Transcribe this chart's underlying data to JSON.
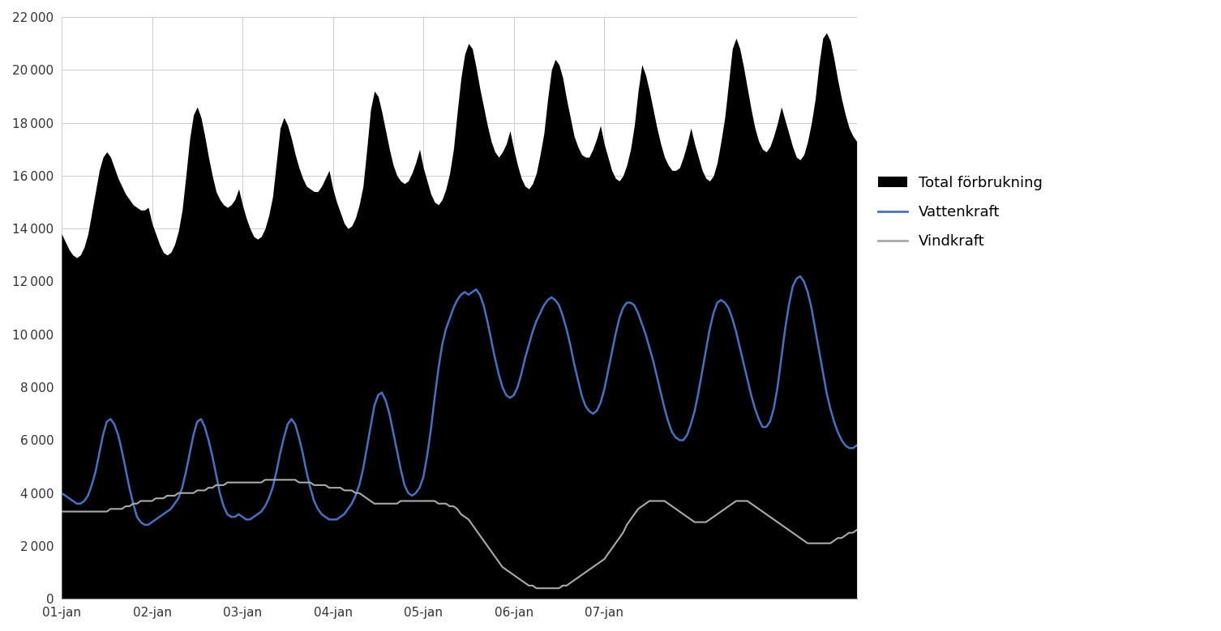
{
  "title": "",
  "background_color": "#ffffff",
  "ylim": [
    0,
    22000
  ],
  "yticks": [
    0,
    2000,
    4000,
    6000,
    8000,
    10000,
    12000,
    14000,
    16000,
    18000,
    20000,
    22000
  ],
  "xtick_labels": [
    "01-jan",
    "02-jan",
    "03-jan",
    "04-jan",
    "05-jan",
    "06-jan",
    "07-jan"
  ],
  "fill_color": "#000000",
  "vattenkraft_color": "#4472c4",
  "vindkraft_color": "#aaaaaa",
  "legend_labels": [
    "Total förbrukning",
    "Vattenkraft",
    "Vindkraft"
  ],
  "total_forbrukning": [
    13800,
    13500,
    13200,
    13000,
    12900,
    13000,
    13300,
    13800,
    14600,
    15400,
    16200,
    16700,
    16900,
    16700,
    16300,
    15900,
    15600,
    15300,
    15100,
    14900,
    14800,
    14700,
    14700,
    14800,
    14200,
    13800,
    13400,
    13100,
    13000,
    13100,
    13400,
    13900,
    14700,
    16000,
    17400,
    18300,
    18600,
    18200,
    17500,
    16700,
    16000,
    15400,
    15100,
    14900,
    14800,
    14900,
    15100,
    15500,
    14900,
    14400,
    14000,
    13700,
    13600,
    13700,
    14000,
    14500,
    15200,
    16500,
    17800,
    18200,
    17900,
    17400,
    16800,
    16300,
    15900,
    15600,
    15500,
    15400,
    15400,
    15600,
    15900,
    16200,
    15500,
    15000,
    14600,
    14200,
    14000,
    14100,
    14400,
    14900,
    15600,
    17000,
    18500,
    19200,
    19000,
    18400,
    17700,
    17000,
    16400,
    16000,
    15800,
    15700,
    15800,
    16100,
    16500,
    17000,
    16300,
    15800,
    15300,
    15000,
    14900,
    15100,
    15500,
    16100,
    17000,
    18400,
    19700,
    20600,
    21000,
    20800,
    20100,
    19300,
    18600,
    17900,
    17300,
    16900,
    16700,
    16900,
    17200,
    17700,
    17000,
    16400,
    15900,
    15600,
    15500,
    15700,
    16100,
    16800,
    17600,
    18900,
    20000,
    20400,
    20200,
    19700,
    18900,
    18200,
    17500,
    17100,
    16800,
    16700,
    16700,
    17000,
    17400,
    17900,
    17200,
    16700,
    16200,
    15900,
    15800,
    16000,
    16400,
    17000,
    17900,
    19200,
    20200,
    19800,
    19200,
    18500,
    17800,
    17200,
    16700,
    16400,
    16200,
    16200,
    16300,
    16700,
    17200,
    17800,
    17200,
    16700,
    16200,
    15900,
    15800,
    16000,
    16500,
    17300,
    18200,
    19500,
    20800,
    21200,
    20800,
    20100,
    19300,
    18500,
    17800,
    17300,
    17000,
    16900,
    17100,
    17500,
    18000,
    18600,
    18100,
    17600,
    17100,
    16700,
    16600,
    16800,
    17300,
    18000,
    18900,
    20200,
    21200,
    21400,
    21100,
    20400,
    19600,
    18900,
    18300,
    17800,
    17500,
    17300
  ],
  "vattenkraft": [
    4000,
    3900,
    3800,
    3700,
    3600,
    3600,
    3700,
    3900,
    4300,
    4800,
    5500,
    6200,
    6700,
    6800,
    6600,
    6200,
    5600,
    4900,
    4200,
    3600,
    3100,
    2900,
    2800,
    2800,
    2900,
    3000,
    3100,
    3200,
    3300,
    3400,
    3600,
    3800,
    4200,
    4800,
    5500,
    6200,
    6700,
    6800,
    6500,
    6000,
    5400,
    4700,
    4000,
    3500,
    3200,
    3100,
    3100,
    3200,
    3100,
    3000,
    3000,
    3100,
    3200,
    3300,
    3500,
    3800,
    4200,
    4800,
    5500,
    6100,
    6600,
    6800,
    6600,
    6100,
    5500,
    4800,
    4200,
    3700,
    3400,
    3200,
    3100,
    3000,
    3000,
    3000,
    3100,
    3200,
    3400,
    3600,
    3900,
    4300,
    4900,
    5700,
    6500,
    7300,
    7700,
    7800,
    7500,
    7000,
    6300,
    5600,
    4900,
    4300,
    4000,
    3900,
    4000,
    4200,
    4600,
    5400,
    6400,
    7600,
    8700,
    9600,
    10200,
    10600,
    11000,
    11300,
    11500,
    11600,
    11500,
    11600,
    11700,
    11500,
    11100,
    10500,
    9800,
    9100,
    8500,
    8000,
    7700,
    7600,
    7700,
    8000,
    8500,
    9100,
    9600,
    10100,
    10500,
    10800,
    11100,
    11300,
    11400,
    11300,
    11100,
    10700,
    10200,
    9600,
    8900,
    8300,
    7700,
    7300,
    7100,
    7000,
    7100,
    7400,
    7900,
    8600,
    9300,
    10000,
    10600,
    11000,
    11200,
    11200,
    11100,
    10800,
    10400,
    10000,
    9500,
    9000,
    8400,
    7800,
    7200,
    6700,
    6300,
    6100,
    6000,
    6000,
    6200,
    6600,
    7100,
    7800,
    8600,
    9400,
    10200,
    10800,
    11200,
    11300,
    11200,
    11000,
    10600,
    10100,
    9500,
    8900,
    8300,
    7700,
    7200,
    6800,
    6500,
    6500,
    6700,
    7200,
    8000,
    9100,
    10200,
    11100,
    11800,
    12100,
    12200,
    12000,
    11600,
    11000,
    10200,
    9400,
    8600,
    7800,
    7200,
    6700,
    6300,
    6000,
    5800,
    5700,
    5700,
    5800
  ],
  "vindkraft": [
    3300,
    3300,
    3300,
    3300,
    3300,
    3300,
    3300,
    3300,
    3300,
    3300,
    3300,
    3300,
    3300,
    3400,
    3400,
    3400,
    3400,
    3500,
    3500,
    3600,
    3600,
    3700,
    3700,
    3700,
    3700,
    3800,
    3800,
    3800,
    3900,
    3900,
    3900,
    4000,
    4000,
    4000,
    4000,
    4000,
    4100,
    4100,
    4100,
    4200,
    4200,
    4300,
    4300,
    4300,
    4400,
    4400,
    4400,
    4400,
    4400,
    4400,
    4400,
    4400,
    4400,
    4400,
    4500,
    4500,
    4500,
    4500,
    4500,
    4500,
    4500,
    4500,
    4500,
    4400,
    4400,
    4400,
    4400,
    4300,
    4300,
    4300,
    4300,
    4200,
    4200,
    4200,
    4200,
    4100,
    4100,
    4100,
    4000,
    4000,
    3900,
    3800,
    3700,
    3600,
    3600,
    3600,
    3600,
    3600,
    3600,
    3600,
    3700,
    3700,
    3700,
    3700,
    3700,
    3700,
    3700,
    3700,
    3700,
    3700,
    3600,
    3600,
    3600,
    3500,
    3500,
    3400,
    3200,
    3100,
    3000,
    2800,
    2600,
    2400,
    2200,
    2000,
    1800,
    1600,
    1400,
    1200,
    1100,
    1000,
    900,
    800,
    700,
    600,
    500,
    500,
    400,
    400,
    400,
    400,
    400,
    400,
    400,
    500,
    500,
    600,
    700,
    800,
    900,
    1000,
    1100,
    1200,
    1300,
    1400,
    1500,
    1700,
    1900,
    2100,
    2300,
    2500,
    2800,
    3000,
    3200,
    3400,
    3500,
    3600,
    3700,
    3700,
    3700,
    3700,
    3700,
    3600,
    3500,
    3400,
    3300,
    3200,
    3100,
    3000,
    2900,
    2900,
    2900,
    2900,
    3000,
    3100,
    3200,
    3300,
    3400,
    3500,
    3600,
    3700,
    3700,
    3700,
    3700,
    3600,
    3500,
    3400,
    3300,
    3200,
    3100,
    3000,
    2900,
    2800,
    2700,
    2600,
    2500,
    2400,
    2300,
    2200,
    2100,
    2100,
    2100,
    2100,
    2100,
    2100,
    2100,
    2200,
    2300,
    2300,
    2400,
    2500,
    2500,
    2600
  ]
}
